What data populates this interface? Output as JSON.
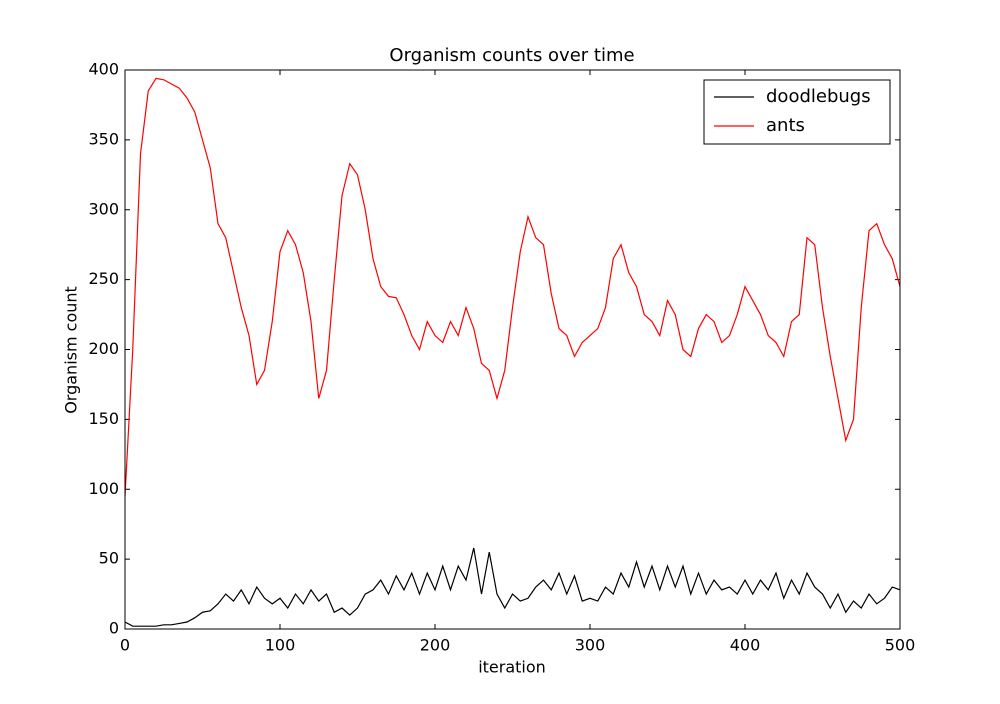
{
  "chart_data": {
    "type": "line",
    "title": "Organism counts over time",
    "x_label": "iteration",
    "y_label": "Organism count",
    "x": [
      0,
      5,
      10,
      15,
      20,
      25,
      30,
      35,
      40,
      45,
      50,
      55,
      60,
      65,
      70,
      75,
      80,
      85,
      90,
      95,
      100,
      105,
      110,
      115,
      120,
      125,
      130,
      135,
      140,
      145,
      150,
      155,
      160,
      165,
      170,
      175,
      180,
      185,
      190,
      195,
      200,
      205,
      210,
      215,
      220,
      225,
      230,
      235,
      240,
      245,
      250,
      255,
      260,
      265,
      270,
      275,
      280,
      285,
      290,
      295,
      300,
      305,
      310,
      315,
      320,
      325,
      330,
      335,
      340,
      345,
      350,
      355,
      360,
      365,
      370,
      375,
      380,
      385,
      390,
      395,
      400,
      405,
      410,
      415,
      420,
      425,
      430,
      435,
      440,
      445,
      450,
      455,
      460,
      465,
      470,
      475,
      480,
      485,
      490,
      495,
      500
    ],
    "series": [
      {
        "name": "doodlebugs",
        "color": "#000000",
        "values": [
          5,
          2,
          2,
          2,
          2,
          3,
          3,
          4,
          5,
          8,
          12,
          13,
          18,
          25,
          20,
          28,
          18,
          30,
          22,
          18,
          22,
          15,
          25,
          18,
          28,
          20,
          25,
          12,
          15,
          10,
          15,
          25,
          28,
          35,
          25,
          38,
          28,
          40,
          25,
          40,
          28,
          45,
          28,
          45,
          35,
          58,
          25,
          55,
          25,
          15,
          25,
          20,
          22,
          30,
          35,
          28,
          40,
          25,
          38,
          20,
          22,
          20,
          30,
          25,
          40,
          30,
          48,
          30,
          45,
          28,
          45,
          30,
          45,
          25,
          40,
          25,
          35,
          28,
          30,
          25,
          35,
          25,
          35,
          28,
          40,
          22,
          35,
          25,
          40,
          30,
          25,
          15,
          25,
          12,
          20,
          15,
          25,
          18,
          22,
          30,
          28
        ]
      },
      {
        "name": "ants",
        "color": "#ff0000",
        "values": [
          95,
          200,
          340,
          385,
          394,
          393,
          390,
          387,
          380,
          370,
          350,
          330,
          290,
          280,
          255,
          230,
          210,
          175,
          185,
          220,
          270,
          285,
          275,
          255,
          220,
          165,
          185,
          250,
          310,
          333,
          325,
          300,
          265,
          245,
          238,
          237,
          225,
          210,
          200,
          220,
          210,
          205,
          220,
          210,
          230,
          215,
          190,
          185,
          165,
          185,
          230,
          270,
          295,
          280,
          275,
          240,
          215,
          210,
          195,
          205,
          210,
          215,
          230,
          265,
          275,
          255,
          245,
          225,
          220,
          210,
          235,
          225,
          200,
          195,
          215,
          225,
          220,
          205,
          210,
          225,
          245,
          235,
          225,
          210,
          205,
          195,
          220,
          225,
          280,
          275,
          230,
          195,
          165,
          135,
          150,
          230,
          285,
          290,
          275,
          265,
          245
        ]
      }
    ],
    "xlim": [
      0,
      500
    ],
    "xticks": [
      0,
      100,
      200,
      300,
      400,
      500
    ],
    "ylim": [
      0,
      400
    ],
    "yticks": [
      0,
      50,
      100,
      150,
      200,
      250,
      300,
      350,
      400
    ],
    "legend": "upper right"
  }
}
